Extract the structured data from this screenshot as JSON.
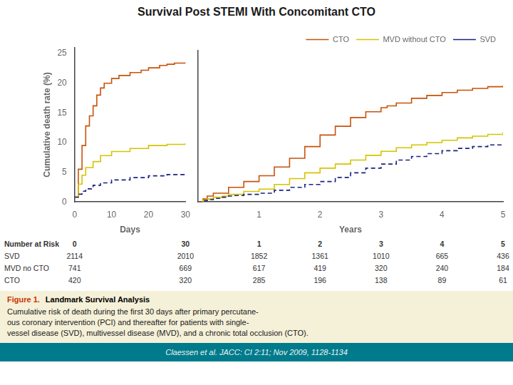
{
  "chart_data": [
    {
      "type": "step",
      "title": "Survival Post STEMI With Concomitant CTO",
      "xlabel": "Days",
      "ylabel": "Cumulative death rate (%)",
      "xlim": [
        0,
        30
      ],
      "xticks": [
        0,
        10,
        20,
        30
      ],
      "ylim": [
        0,
        26
      ],
      "yticks": [
        0,
        5,
        10,
        15,
        20,
        25
      ],
      "grid": false,
      "series": [
        {
          "name": "SVD",
          "color": "#1a237e",
          "line_style": "dashed",
          "x": [
            0,
            1,
            2,
            3,
            5,
            7,
            10,
            15,
            20,
            25,
            30
          ],
          "values": [
            0.8,
            1.3,
            1.8,
            2.2,
            2.8,
            3.2,
            3.7,
            4.1,
            4.4,
            4.6,
            4.8
          ]
        },
        {
          "name": "MVD without CTO",
          "color": "#d4c400",
          "line_style": "solid",
          "x": [
            0,
            1,
            2,
            3,
            5,
            7,
            10,
            15,
            20,
            25,
            30
          ],
          "values": [
            0.8,
            3.0,
            4.5,
            5.8,
            6.8,
            7.8,
            8.5,
            9.0,
            9.5,
            9.7,
            9.9
          ]
        },
        {
          "name": "CTO",
          "color": "#c8520a",
          "line_style": "solid",
          "x": [
            0,
            1,
            2,
            3,
            4,
            5,
            6,
            7,
            8,
            10,
            12,
            15,
            18,
            20,
            23,
            25,
            27,
            30
          ],
          "values": [
            0.8,
            5.5,
            9.5,
            12.8,
            14.5,
            16.2,
            18.0,
            19.2,
            20.0,
            20.8,
            21.3,
            21.8,
            22.2,
            22.6,
            23.0,
            23.2,
            23.4,
            23.5
          ]
        }
      ],
      "number_at_risk": {
        "title": "Number at Risk",
        "row_names": [
          "SVD",
          "MVD no CTO",
          "CTO"
        ],
        "timepoints": [
          0,
          30
        ],
        "rows": [
          [
            2114,
            2010
          ],
          [
            741,
            669
          ],
          [
            420,
            320
          ]
        ]
      },
      "caption": {
        "label": "Figure 1.",
        "heading": "Landmark Survival Analysis",
        "text": "Cumulative risk of death during the first 30 days after primary percutane-\nous coronary intervention (PCI) and thereafter for patients with single-\nvessel disease (SVD), multivessel disease (MVD), and a chronic total occlusion (CTO)."
      },
      "footnote": "Claessen et al. JACC: CI 2:11; Nov 2009, 1128-1134"
    },
    {
      "type": "step",
      "xlabel": "Years",
      "xlim": [
        0,
        5
      ],
      "xticks": [
        1,
        2,
        3,
        4,
        5
      ],
      "ylim": [
        0,
        26
      ],
      "yticks": [
        0,
        5,
        10,
        15,
        20,
        25
      ],
      "grid": false,
      "tick_labels": "x",
      "legend": "upper right",
      "series": [
        {
          "name": "SVD",
          "color": "#1a237e",
          "line_style": "dashed",
          "x": [
            0,
            0.08,
            0.15,
            0.25,
            0.4,
            0.5,
            0.6,
            0.75,
            1.0,
            1.25,
            1.5,
            1.75,
            2.0,
            2.25,
            2.5,
            2.75,
            3.0,
            3.25,
            3.5,
            3.75,
            4.0,
            4.25,
            4.5,
            4.75,
            5.0
          ],
          "values": [
            0.0,
            0.2,
            0.4,
            0.6,
            0.8,
            1.0,
            1.1,
            1.3,
            1.5,
            2.0,
            2.5,
            3.0,
            3.5,
            4.2,
            5.0,
            5.8,
            6.5,
            7.2,
            7.8,
            8.3,
            8.8,
            9.2,
            9.5,
            9.8,
            10.0
          ]
        },
        {
          "name": "MVD without CTO",
          "color": "#d4c400",
          "line_style": "solid",
          "x": [
            0,
            0.08,
            0.15,
            0.25,
            0.4,
            0.5,
            0.75,
            1.0,
            1.25,
            1.5,
            1.75,
            2.0,
            2.25,
            2.5,
            2.75,
            3.0,
            3.25,
            3.5,
            3.75,
            4.0,
            4.25,
            4.5,
            4.75,
            5.0
          ],
          "values": [
            0.0,
            0.3,
            0.5,
            0.8,
            1.0,
            1.3,
            1.8,
            2.2,
            3.0,
            4.0,
            5.0,
            5.8,
            6.5,
            7.2,
            8.0,
            8.7,
            9.3,
            9.8,
            10.2,
            10.6,
            11.0,
            11.3,
            11.6,
            12.0
          ]
        },
        {
          "name": "CTO",
          "color": "#c8520a",
          "line_style": "solid",
          "x": [
            0,
            0.08,
            0.15,
            0.25,
            0.5,
            0.75,
            1.0,
            1.25,
            1.5,
            1.75,
            2.0,
            2.25,
            2.5,
            2.75,
            3.0,
            3.1,
            3.25,
            3.5,
            3.75,
            4.0,
            4.25,
            4.5,
            4.75,
            5.0
          ],
          "values": [
            0.0,
            0.5,
            1.0,
            1.5,
            2.5,
            3.5,
            4.5,
            6.0,
            7.5,
            9.5,
            11.5,
            13.0,
            14.5,
            15.5,
            16.2,
            16.5,
            17.0,
            17.8,
            18.3,
            18.8,
            19.2,
            19.5,
            19.8,
            20.0
          ]
        }
      ],
      "number_at_risk": {
        "timepoints": [
          1,
          2,
          3,
          4,
          5
        ],
        "rows": [
          [
            1852,
            1361,
            1010,
            665,
            436
          ],
          [
            617,
            419,
            320,
            240,
            184
          ],
          [
            285,
            196,
            138,
            89,
            61
          ]
        ]
      }
    }
  ]
}
